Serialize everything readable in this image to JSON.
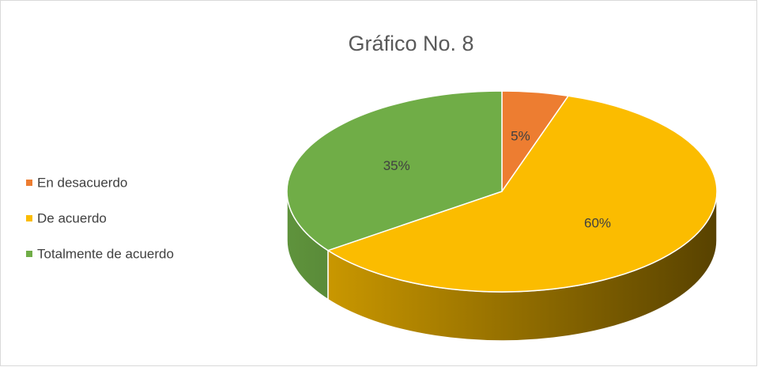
{
  "chart_data": {
    "type": "pie",
    "title": "Gráfico No. 8",
    "categories": [
      "En desacuerdo",
      "De acuerdo",
      "Totalmente de acuerdo"
    ],
    "values": [
      5,
      60,
      35
    ],
    "value_labels": [
      "5%",
      "60%",
      "35%"
    ],
    "colors": [
      "#ed7d31",
      "#fbbc00",
      "#70ad47"
    ],
    "legend": "left"
  }
}
